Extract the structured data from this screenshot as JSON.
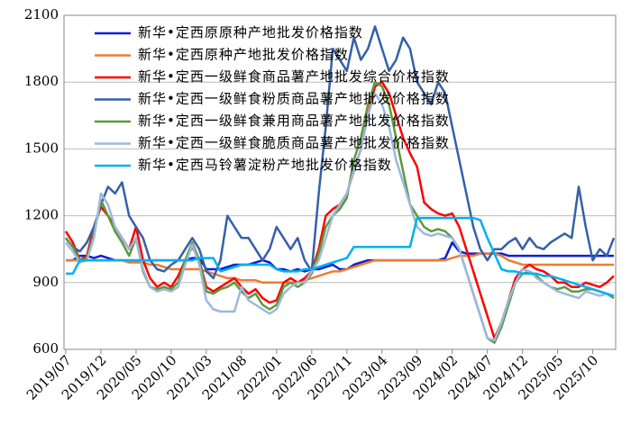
{
  "chart_data": {
    "type": "line",
    "categories": [
      "2019/07",
      null,
      null,
      null,
      null,
      "2019/12",
      null,
      null,
      null,
      null,
      "2020/05",
      null,
      null,
      null,
      null,
      "2020/10",
      null,
      null,
      null,
      null,
      "2021/03",
      null,
      null,
      null,
      null,
      "2021/08",
      null,
      null,
      null,
      null,
      "2022/01",
      null,
      null,
      null,
      null,
      "2022/06",
      null,
      null,
      null,
      null,
      "2022/11",
      null,
      null,
      null,
      null,
      "2023/04",
      null,
      null,
      null,
      null,
      "2023/09",
      null,
      null,
      null,
      null,
      "2024/02",
      null,
      null,
      null,
      null,
      "2024/07",
      null,
      null,
      null,
      null,
      "2024/12",
      null,
      null,
      null,
      null,
      "2025/05",
      null,
      null,
      null,
      null,
      "2025/10",
      null,
      null,
      null
    ],
    "ylim": [
      600,
      2100
    ],
    "yticks": [
      600,
      900,
      1200,
      1500,
      1800,
      2100
    ],
    "grid": true,
    "series": [
      {
        "name": "新华•定西原原种产地批发价格指数",
        "color": "#0a1fd6",
        "values": [
          1000,
          1000,
          1020,
          1020,
          1010,
          1020,
          1010,
          1000,
          1000,
          1000,
          1000,
          1000,
          1000,
          1000,
          1000,
          1000,
          1000,
          1000,
          1010,
          1010,
          960,
          960,
          960,
          970,
          980,
          980,
          980,
          990,
          1000,
          990,
          960,
          960,
          950,
          960,
          950,
          960,
          960,
          970,
          980,
          960,
          960,
          980,
          990,
          1000,
          1000,
          1000,
          1000,
          1000,
          1000,
          1000,
          1000,
          1000,
          1000,
          1000,
          1010,
          1080,
          1040,
          1030,
          1030,
          1030,
          1030,
          1030,
          1030,
          1020,
          1020,
          1020,
          1020,
          1020,
          1020,
          1020,
          1020,
          1020,
          1020,
          1020,
          1020,
          1020,
          1020,
          1020,
          1020
        ]
      },
      {
        "name": "新华•定西原种产地批发价格指数",
        "color": "#ed7d31",
        "values": [
          1000,
          1000,
          1000,
          1000,
          1000,
          1000,
          1000,
          1000,
          1000,
          990,
          990,
          990,
          980,
          980,
          970,
          960,
          960,
          960,
          960,
          960,
          950,
          940,
          930,
          920,
          920,
          910,
          910,
          910,
          900,
          900,
          900,
          900,
          900,
          900,
          910,
          920,
          930,
          940,
          950,
          950,
          960,
          970,
          980,
          990,
          1000,
          1000,
          1000,
          1000,
          1000,
          1000,
          1000,
          1000,
          1000,
          1000,
          1000,
          1010,
          1020,
          1020,
          1020,
          1030,
          1030,
          1030,
          1020,
          1000,
          990,
          980,
          980,
          980,
          980,
          980,
          980,
          980,
          980,
          980,
          980,
          980,
          980,
          980,
          980
        ]
      },
      {
        "name": "新华•定西一级鲜食商品薯产地批发综合价格指数",
        "color": "#ff0000",
        "values": [
          1130,
          1080,
          1000,
          1020,
          1150,
          1240,
          1200,
          1150,
          1100,
          1050,
          1150,
          1000,
          920,
          880,
          900,
          880,
          930,
          1000,
          1060,
          1000,
          880,
          860,
          880,
          900,
          920,
          880,
          850,
          870,
          830,
          810,
          820,
          900,
          920,
          900,
          920,
          950,
          1050,
          1200,
          1230,
          1250,
          1300,
          1400,
          1500,
          1650,
          1780,
          1800,
          1750,
          1650,
          1550,
          1480,
          1420,
          1260,
          1230,
          1210,
          1200,
          1210,
          1150,
          1050,
          950,
          850,
          750,
          650,
          720,
          820,
          920,
          960,
          980,
          960,
          950,
          930,
          900,
          900,
          880,
          880,
          900,
          890,
          880,
          900,
          930
        ]
      },
      {
        "name": "新华•定西一级鲜食粉质商品薯产地批发价格指数",
        "color": "#3560aa",
        "values": [
          1100,
          1060,
          1040,
          1080,
          1150,
          1250,
          1330,
          1300,
          1350,
          1200,
          1150,
          1100,
          1000,
          960,
          950,
          980,
          1000,
          1050,
          1100,
          1050,
          950,
          920,
          1000,
          1200,
          1150,
          1100,
          1100,
          1050,
          1000,
          1050,
          1150,
          1100,
          1050,
          1100,
          1000,
          950,
          1300,
          1600,
          1950,
          1900,
          1850,
          2000,
          1900,
          1950,
          2050,
          1950,
          1850,
          1900,
          2000,
          1950,
          1800,
          1750,
          1700,
          1800,
          1750,
          1600,
          1450,
          1300,
          1150,
          1050,
          1000,
          1050,
          1050,
          1080,
          1100,
          1050,
          1100,
          1060,
          1050,
          1080,
          1100,
          1120,
          1100,
          1330,
          1150,
          1000,
          1050,
          1020,
          1100
        ]
      },
      {
        "name": "新华•定西一级鲜食兼用商品薯产地批发价格指数",
        "color": "#5b9a3c",
        "values": [
          1100,
          1060,
          1000,
          1010,
          1120,
          1270,
          1200,
          1130,
          1080,
          1020,
          1100,
          950,
          880,
          870,
          880,
          870,
          900,
          1000,
          1080,
          1000,
          860,
          850,
          870,
          880,
          900,
          860,
          830,
          850,
          800,
          780,
          800,
          880,
          900,
          880,
          900,
          940,
          1030,
          1150,
          1200,
          1230,
          1280,
          1450,
          1550,
          1700,
          1800,
          1780,
          1700,
          1550,
          1400,
          1250,
          1200,
          1150,
          1130,
          1140,
          1130,
          1100,
          1050,
          950,
          850,
          750,
          650,
          630,
          700,
          800,
          900,
          940,
          950,
          930,
          900,
          880,
          870,
          880,
          860,
          860,
          870,
          870,
          860,
          850,
          830
        ]
      },
      {
        "name": "新华•定西一级鲜食脆质商品薯产地批发价格指数",
        "color": "#9db8dc",
        "values": [
          1080,
          1040,
          990,
          1000,
          1100,
          1300,
          1250,
          1150,
          1100,
          1050,
          1100,
          960,
          880,
          860,
          870,
          860,
          880,
          980,
          1070,
          980,
          820,
          780,
          770,
          770,
          770,
          880,
          820,
          800,
          780,
          760,
          780,
          850,
          880,
          900,
          900,
          950,
          1000,
          1100,
          1200,
          1250,
          1300,
          1400,
          1500,
          1650,
          1750,
          1700,
          1600,
          1450,
          1350,
          1250,
          1150,
          1120,
          1110,
          1120,
          1110,
          1100,
          1050,
          950,
          850,
          750,
          650,
          640,
          720,
          820,
          900,
          960,
          950,
          920,
          900,
          880,
          860,
          850,
          840,
          830,
          860,
          850,
          840,
          850,
          840
        ]
      },
      {
        "name": "新华•定西马铃薯淀粉产地批发价格指数",
        "color": "#00b0f0",
        "values": [
          940,
          940,
          1000,
          1000,
          1000,
          1000,
          1000,
          1000,
          1000,
          1000,
          1000,
          1000,
          1000,
          1000,
          1000,
          1000,
          1000,
          1000,
          1000,
          1010,
          1010,
          1010,
          950,
          960,
          970,
          980,
          980,
          980,
          980,
          980,
          960,
          950,
          950,
          950,
          960,
          960,
          970,
          980,
          990,
          1000,
          1010,
          1060,
          1060,
          1060,
          1060,
          1060,
          1060,
          1060,
          1060,
          1060,
          1190,
          1190,
          1190,
          1190,
          1190,
          1190,
          1190,
          1190,
          1190,
          1180,
          1100,
          1030,
          960,
          950,
          950,
          940,
          940,
          940,
          930,
          930,
          920,
          910,
          900,
          890,
          880,
          870,
          860,
          850,
          840
        ]
      }
    ]
  }
}
